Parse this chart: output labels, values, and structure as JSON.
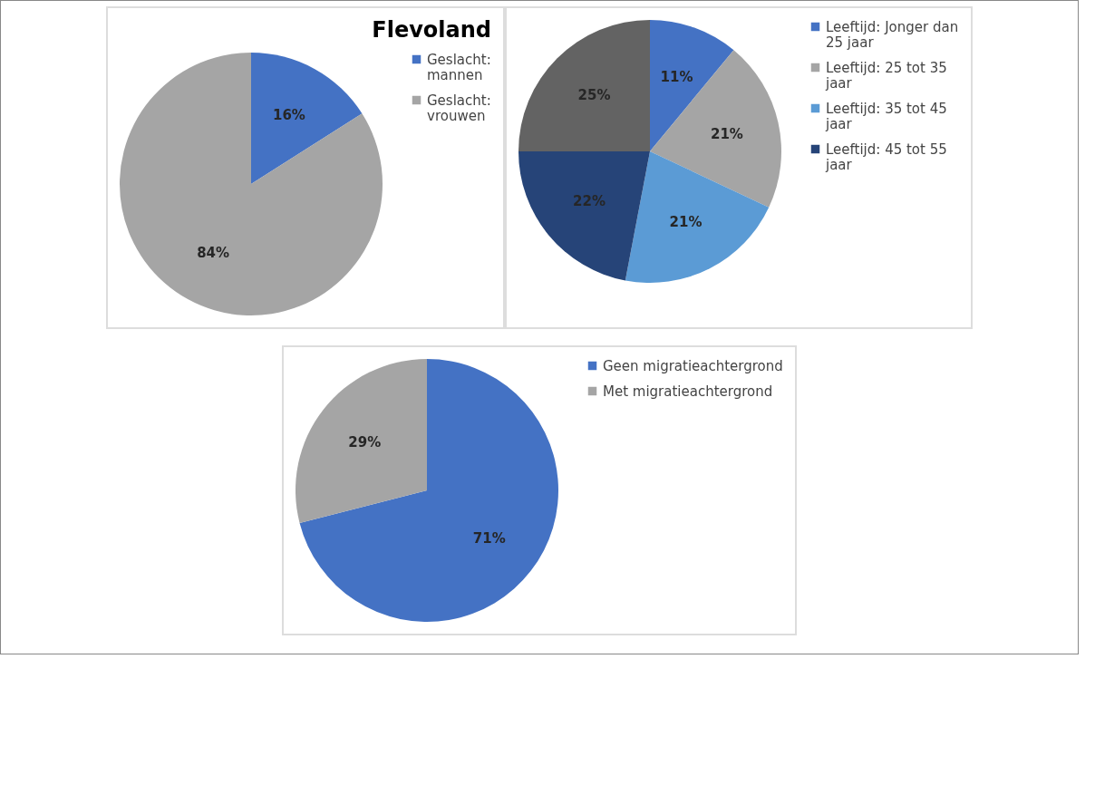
{
  "chart_data": [
    {
      "type": "pie",
      "title": "Flevoland",
      "categories": [
        "Geslacht: mannen",
        "Geslacht: vrouwen"
      ],
      "values": [
        16,
        84
      ],
      "value_labels": [
        "16%",
        "84%"
      ],
      "colors": [
        "#4472c4",
        "#a5a5a5"
      ],
      "legend": "right"
    },
    {
      "type": "pie",
      "categories": [
        "Leeftijd: Jonger dan 25 jaar",
        "Leeftijd: 25 tot 35 jaar",
        "Leeftijd: 35 tot 45 jaar",
        "Leeftijd: 45 tot 55 jaar",
        null
      ],
      "values": [
        11,
        21,
        21,
        22,
        25
      ],
      "value_labels": [
        "11%",
        "21%",
        "21%",
        "22%",
        "25%"
      ],
      "colors": [
        "#4472c4",
        "#a5a5a5",
        "#5b9bd5",
        "#264478",
        "#636363"
      ],
      "legend": "right"
    },
    {
      "type": "pie",
      "categories": [
        "Geen migratieachtergrond",
        "Met migratieachtergrond"
      ],
      "values": [
        71,
        29
      ],
      "value_labels": [
        "71%",
        "29%"
      ],
      "colors": [
        "#4472c4",
        "#a5a5a5"
      ],
      "legend": "right"
    }
  ]
}
